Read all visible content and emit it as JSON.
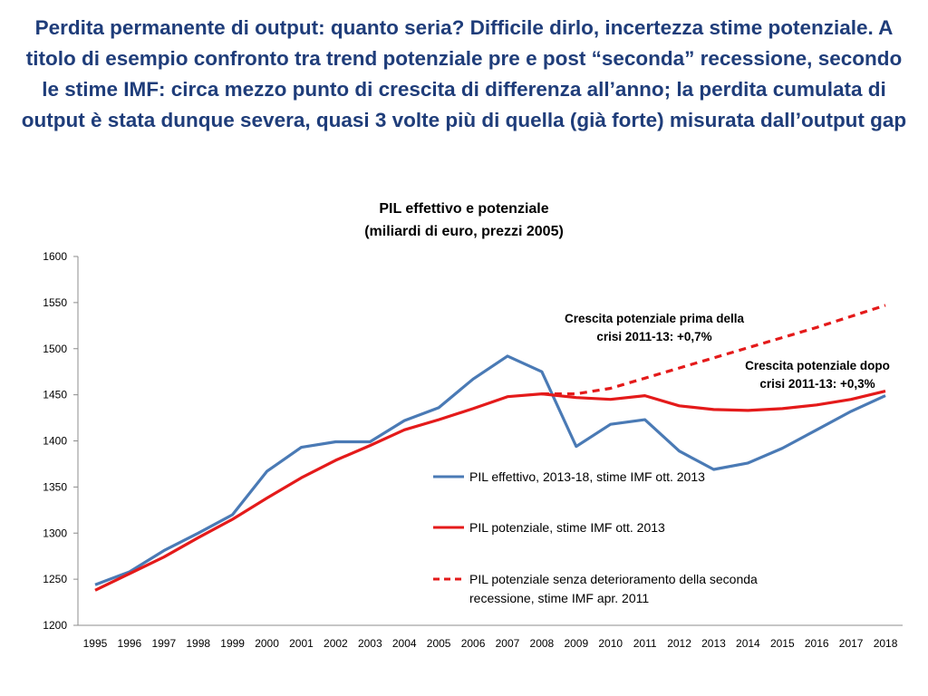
{
  "headline": "Perdita permanente di output: quanto seria? Difficile dirlo, incertezza stime potenziale. A titolo di esempio confronto tra trend potenziale pre e post “seconda” recessione, secondo le stime IMF: circa mezzo punto di crescita di differenza all’anno; la perdita cumulata di output è stata dunque severa, quasi 3 volte più di quella (già forte) misurata dall’output gap",
  "chart_data": {
    "type": "line",
    "title": "PIL effettivo e potenziale",
    "subtitle": "(miliardi di euro, prezzi 2005)",
    "xlabel": "",
    "ylabel": "",
    "ylim": [
      1200,
      1600
    ],
    "yticks": [
      1200,
      1250,
      1300,
      1350,
      1400,
      1450,
      1500,
      1550,
      1600
    ],
    "grid": false,
    "legend_position": "center-right",
    "categories": [
      "1995",
      "1996",
      "1997",
      "1998",
      "1999",
      "2000",
      "2001",
      "2002",
      "2003",
      "2004",
      "2005",
      "2006",
      "2007",
      "2008",
      "2009",
      "2010",
      "2011",
      "2012",
      "2013",
      "2014",
      "2015",
      "2016",
      "2017",
      "2018"
    ],
    "series": [
      {
        "name": "PIL effettivo, 2013-18, stime IMF ott. 2013",
        "color": "#4a7ab5",
        "dash": "solid",
        "values": [
          1244,
          1258,
          1281,
          1300,
          1320,
          1367,
          1393,
          1399,
          1399,
          1422,
          1436,
          1467,
          1492,
          1475,
          1394,
          1418,
          1423,
          1389,
          1369,
          1376,
          1392,
          1412,
          1432,
          1449
        ]
      },
      {
        "name": "PIL potenziale, stime IMF ott. 2013",
        "color": "#e41a1a",
        "dash": "solid",
        "values": [
          1238,
          1256,
          1274,
          1295,
          1315,
          1338,
          1360,
          1379,
          1395,
          1412,
          1423,
          1435,
          1448,
          1451,
          1447,
          1445,
          1449,
          1438,
          1434,
          1433,
          1435,
          1439,
          1445,
          1454
        ]
      },
      {
        "name": "PIL potenziale senza deterioramento della seconda recessione, stime IMF apr. 2011",
        "color": "#e41a1a",
        "dash": "dashed",
        "values": [
          null,
          null,
          null,
          null,
          null,
          null,
          null,
          null,
          null,
          null,
          null,
          null,
          null,
          1451,
          1451,
          1457,
          1468,
          1479,
          1490,
          1501,
          1512,
          1523,
          1535,
          1547
        ]
      }
    ],
    "annotations": [
      "Crescita potenziale prima della crisi  2011-13: +0,7%",
      "Crescita potenziale dopo crisi 2011-13: +0,3%"
    ]
  },
  "legend": {
    "items": [
      {
        "label": "PIL effettivo, 2013-18, stime IMF ott. 2013"
      },
      {
        "label": "PIL potenziale, stime IMF ott. 2013"
      },
      {
        "label_line1": "PIL potenziale senza deterioramento della seconda",
        "label_line2": "recessione, stime IMF apr. 2011"
      }
    ]
  },
  "annotation_lines": {
    "pre": [
      "Crescita potenziale prima della",
      "crisi  2011-13: +0,7%"
    ],
    "post": [
      "Crescita potenziale dopo",
      "crisi 2011-13: +0,3%"
    ]
  }
}
